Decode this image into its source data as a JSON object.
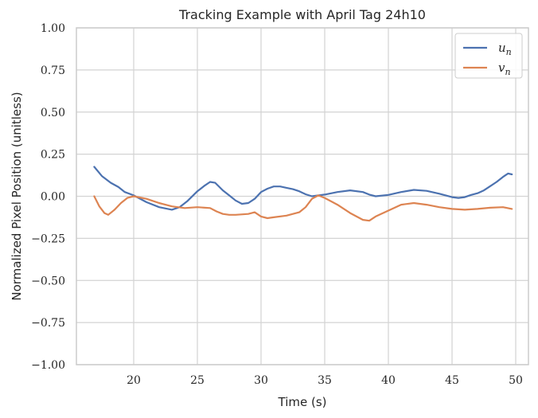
{
  "chart_data": {
    "type": "line",
    "title": "Tracking Example with April Tag 24h10",
    "xlabel": "Time (s)",
    "ylabel": "Normalized Pixel Position (unitless)",
    "xlim": [
      15.5,
      51.0
    ],
    "ylim": [
      -1.0,
      1.0
    ],
    "xticks": [
      20,
      25,
      30,
      35,
      40,
      45,
      50
    ],
    "xtick_labels": [
      "20",
      "25",
      "30",
      "35",
      "40",
      "45",
      "50"
    ],
    "yticks": [
      1.0,
      0.75,
      0.5,
      0.25,
      0.0,
      -0.25,
      -0.5,
      -0.75,
      -1.0
    ],
    "ytick_labels": [
      "1.00",
      "0.75",
      "0.50",
      "0.25",
      "0.00",
      "−0.25",
      "−0.50",
      "−0.75",
      "−1.00"
    ],
    "grid": true,
    "legend_position": "top-right",
    "series": [
      {
        "name": "u",
        "subscript": "n",
        "color": "#4c72b0",
        "x": [
          16.9,
          17.5,
          18.2,
          18.8,
          19.3,
          20.0,
          21.0,
          22.0,
          23.0,
          23.6,
          24.2,
          25.0,
          25.6,
          26.0,
          26.4,
          27.0,
          27.5,
          28.0,
          28.5,
          29.0,
          29.5,
          30.0,
          30.5,
          31.0,
          31.5,
          32.0,
          32.5,
          33.0,
          33.5,
          34.0,
          35.0,
          36.0,
          37.0,
          38.0,
          38.5,
          39.0,
          40.0,
          41.0,
          42.0,
          43.0,
          44.0,
          45.0,
          45.5,
          46.0,
          46.5,
          47.0,
          47.5,
          48.0,
          48.5,
          49.0,
          49.4,
          49.7
        ],
        "y": [
          0.175,
          0.12,
          0.08,
          0.055,
          0.025,
          0.005,
          -0.035,
          -0.065,
          -0.08,
          -0.065,
          -0.03,
          0.03,
          0.065,
          0.085,
          0.08,
          0.035,
          0.005,
          -0.025,
          -0.045,
          -0.04,
          -0.015,
          0.025,
          0.045,
          0.058,
          0.058,
          0.05,
          0.042,
          0.03,
          0.012,
          0.0,
          0.01,
          0.025,
          0.035,
          0.025,
          0.01,
          0.0,
          0.008,
          0.025,
          0.038,
          0.032,
          0.015,
          -0.005,
          -0.01,
          -0.005,
          0.008,
          0.018,
          0.035,
          0.06,
          0.085,
          0.115,
          0.135,
          0.13
        ]
      },
      {
        "name": "v",
        "subscript": "n",
        "color": "#dd8452",
        "x": [
          16.9,
          17.3,
          17.7,
          18.0,
          18.5,
          19.0,
          19.5,
          20.0,
          21.0,
          22.0,
          23.0,
          24.0,
          25.0,
          26.0,
          26.5,
          27.0,
          27.5,
          28.0,
          29.0,
          29.5,
          30.0,
          30.5,
          31.0,
          32.0,
          33.0,
          33.5,
          34.0,
          34.5,
          35.0,
          36.0,
          37.0,
          38.0,
          38.5,
          39.0,
          40.0,
          41.0,
          42.0,
          43.0,
          44.0,
          45.0,
          46.0,
          47.0,
          48.0,
          49.0,
          49.7
        ],
        "y": [
          0.0,
          -0.06,
          -0.1,
          -0.11,
          -0.08,
          -0.04,
          -0.01,
          0.0,
          -0.015,
          -0.04,
          -0.06,
          -0.07,
          -0.065,
          -0.07,
          -0.09,
          -0.105,
          -0.11,
          -0.11,
          -0.105,
          -0.095,
          -0.12,
          -0.13,
          -0.125,
          -0.115,
          -0.095,
          -0.065,
          -0.015,
          0.005,
          -0.01,
          -0.05,
          -0.1,
          -0.14,
          -0.145,
          -0.12,
          -0.085,
          -0.05,
          -0.04,
          -0.05,
          -0.065,
          -0.075,
          -0.08,
          -0.075,
          -0.068,
          -0.065,
          -0.075
        ]
      }
    ]
  }
}
